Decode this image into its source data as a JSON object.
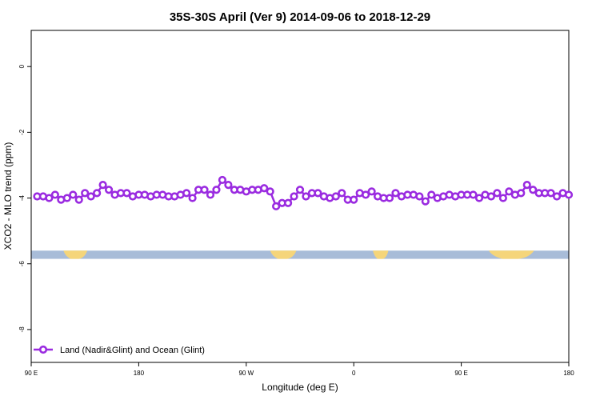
{
  "chart_data": {
    "type": "line",
    "title": "35S-30S April (Ver 9)   2014-09-06 to 2018-12-29",
    "xlabel": "Longitude (deg E)",
    "ylabel": "XCO2 - MLO trend (ppm)",
    "xlim": [
      90,
      540
    ],
    "ylim": [
      -9,
      1.1
    ],
    "xticks": [
      {
        "value": 90,
        "label": "90 E"
      },
      {
        "value": 180,
        "label": "180"
      },
      {
        "value": 270,
        "label": "90 W"
      },
      {
        "value": 360,
        "label": "0"
      },
      {
        "value": 450,
        "label": "90 E"
      },
      {
        "value": 540,
        "label": "180"
      }
    ],
    "yticks": [
      {
        "value": 0,
        "label": "0"
      },
      {
        "value": -2,
        "label": "-2"
      },
      {
        "value": -4,
        "label": "-4"
      },
      {
        "value": -6,
        "label": "-6"
      },
      {
        "value": -8,
        "label": "-8"
      }
    ],
    "legend": {
      "position": "bottom-left"
    },
    "land_strip": {
      "y_range": [
        -5.85,
        -5.6
      ],
      "ocean_color": "#a8bcd8",
      "land_color": "#f5d57a",
      "land_longitudes": [
        [
          117,
          137
        ],
        [
          290,
          312
        ],
        [
          376,
          389
        ],
        [
          473,
          511
        ]
      ]
    },
    "series": [
      {
        "name": "Land (Nadir&Glint) and Ocean (Glint)",
        "color": "#9a2be0",
        "x": [
          95,
          100,
          105,
          110,
          115,
          120,
          125,
          130,
          135,
          140,
          145,
          150,
          155,
          160,
          165,
          170,
          175,
          180,
          185,
          190,
          195,
          200,
          205,
          210,
          215,
          220,
          225,
          230,
          235,
          240,
          245,
          250,
          255,
          260,
          265,
          270,
          275,
          280,
          285,
          290,
          295,
          300,
          305,
          310,
          315,
          320,
          325,
          330,
          335,
          340,
          345,
          350,
          355,
          360,
          365,
          370,
          375,
          380,
          385,
          390,
          395,
          400,
          405,
          410,
          415,
          420,
          425,
          430,
          435,
          440,
          445,
          450,
          455,
          460,
          465,
          470,
          475,
          480,
          485,
          490,
          495,
          500,
          505,
          510,
          515,
          520,
          525,
          530,
          535,
          540
        ],
        "y": [
          -3.95,
          -3.95,
          -4.0,
          -3.9,
          -4.05,
          -4.0,
          -3.9,
          -4.05,
          -3.85,
          -3.95,
          -3.85,
          -3.6,
          -3.75,
          -3.9,
          -3.85,
          -3.85,
          -3.95,
          -3.9,
          -3.9,
          -3.95,
          -3.9,
          -3.9,
          -3.95,
          -3.95,
          -3.9,
          -3.85,
          -4.0,
          -3.75,
          -3.75,
          -3.9,
          -3.75,
          -3.45,
          -3.6,
          -3.75,
          -3.75,
          -3.8,
          -3.75,
          -3.75,
          -3.7,
          -3.8,
          -4.25,
          -4.15,
          -4.15,
          -3.95,
          -3.75,
          -3.95,
          -3.85,
          -3.85,
          -3.95,
          -4.0,
          -3.95,
          -3.85,
          -4.05,
          -4.05,
          -3.85,
          -3.9,
          -3.8,
          -3.95,
          -4.0,
          -4.0,
          -3.85,
          -3.95,
          -3.9,
          -3.9,
          -3.95,
          -4.1,
          -3.9,
          -4.0,
          -3.95,
          -3.9,
          -3.95,
          -3.9,
          -3.9,
          -3.9,
          -4.0,
          -3.9,
          -3.95,
          -3.85,
          -4.0,
          -3.8,
          -3.9,
          -3.85,
          -3.6,
          -3.75,
          -3.85,
          -3.85,
          -3.85,
          -3.95,
          -3.85,
          -3.9
        ]
      }
    ]
  }
}
